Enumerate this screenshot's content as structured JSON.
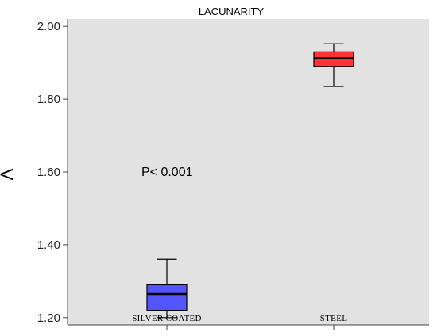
{
  "chart_data": {
    "type": "box",
    "title": "LACUNARITY",
    "ylabel": "Λ",
    "xlabel": "",
    "ylim": [
      1.18,
      2.02
    ],
    "yticks": [
      "1.20",
      "1.40",
      "1.60",
      "1.80",
      "2.00"
    ],
    "grid": false,
    "annotation": "P< 0.001",
    "categories": [
      "SILVER COATED",
      "STEEL"
    ],
    "boxes": [
      {
        "category": "SILVER COATED",
        "min": 1.2,
        "q1": 1.22,
        "median": 1.265,
        "q3": 1.29,
        "max": 1.36,
        "color": "#5555ff"
      },
      {
        "category": "STEEL",
        "min": 1.835,
        "q1": 1.89,
        "median": 1.912,
        "q3": 1.93,
        "max": 1.952,
        "color": "#ff3333"
      }
    ]
  },
  "colors": {
    "plot_background": "#e2e2e2",
    "axis": "#444444"
  }
}
